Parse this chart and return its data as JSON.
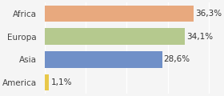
{
  "categories": [
    "America",
    "Asia",
    "Europa",
    "Africa"
  ],
  "values": [
    1.1,
    28.6,
    34.1,
    36.3
  ],
  "labels": [
    "1,1%",
    "28,6%",
    "34,1%",
    "36,3%"
  ],
  "bar_colors": [
    "#e8c84a",
    "#7090c8",
    "#b5c98e",
    "#e8a97e"
  ],
  "background_color": "#f5f5f5",
  "xlim": [
    0,
    42
  ],
  "label_fontsize": 7.5,
  "tick_fontsize": 7.5
}
